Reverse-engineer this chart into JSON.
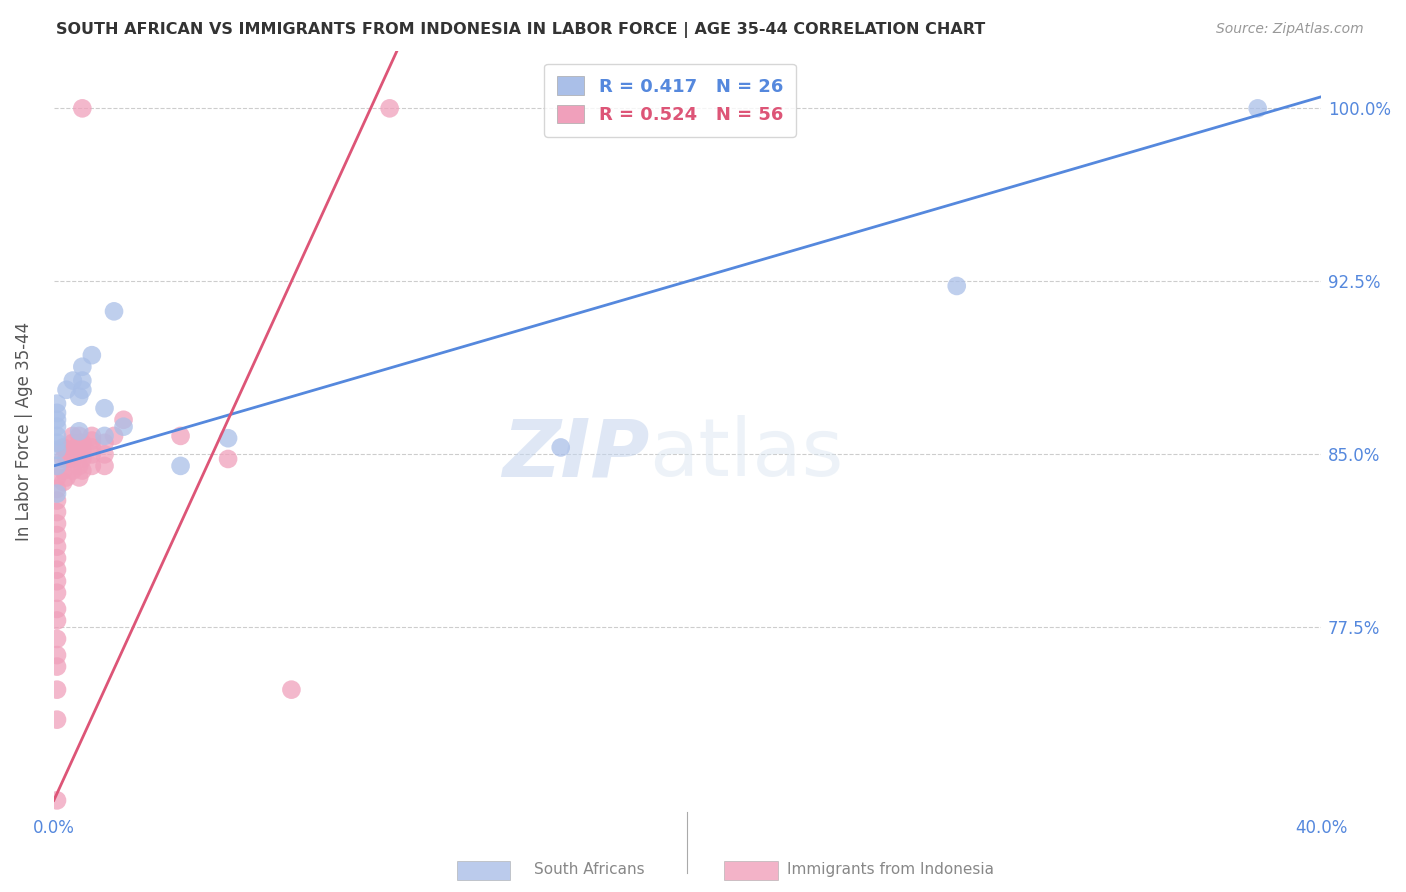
{
  "title": "SOUTH AFRICAN VS IMMIGRANTS FROM INDONESIA IN LABOR FORCE | AGE 35-44 CORRELATION CHART",
  "source": "Source: ZipAtlas.com",
  "ylabel": "In Labor Force | Age 35-44",
  "xlim": [
    0.0,
    0.4
  ],
  "ylim": [
    0.695,
    1.025
  ],
  "yticks": [
    0.775,
    0.85,
    0.925,
    1.0
  ],
  "yticklabels": [
    "77.5%",
    "85.0%",
    "92.5%",
    "100.0%"
  ],
  "grid_color": "#c8c8c8",
  "background_color": "#ffffff",
  "blue_color": "#aabfe8",
  "pink_color": "#f0a0bb",
  "blue_line_color": "#5588dd",
  "pink_line_color": "#dd5577",
  "legend_R_blue": "R = 0.417",
  "legend_N_blue": "N = 26",
  "legend_R_pink": "R = 0.524",
  "legend_N_pink": "N = 56",
  "watermark_zip": "ZIP",
  "watermark_atlas": "atlas",
  "south_africans_x": [
    0.001,
    0.001,
    0.001,
    0.001,
    0.001,
    0.001,
    0.001,
    0.001,
    0.001,
    0.004,
    0.006,
    0.008,
    0.008,
    0.009,
    0.009,
    0.009,
    0.012,
    0.016,
    0.016,
    0.019,
    0.022,
    0.04,
    0.055,
    0.16,
    0.285,
    0.38
  ],
  "south_africans_y": [
    0.833,
    0.845,
    0.852,
    0.855,
    0.858,
    0.862,
    0.865,
    0.868,
    0.872,
    0.878,
    0.882,
    0.86,
    0.875,
    0.878,
    0.882,
    0.888,
    0.893,
    0.858,
    0.87,
    0.912,
    0.862,
    0.845,
    0.857,
    0.853,
    0.923,
    1.0
  ],
  "indonesia_x": [
    0.001,
    0.001,
    0.001,
    0.001,
    0.001,
    0.001,
    0.001,
    0.001,
    0.001,
    0.001,
    0.001,
    0.001,
    0.001,
    0.001,
    0.001,
    0.001,
    0.001,
    0.001,
    0.001,
    0.003,
    0.003,
    0.003,
    0.003,
    0.004,
    0.004,
    0.004,
    0.006,
    0.006,
    0.006,
    0.006,
    0.006,
    0.008,
    0.008,
    0.008,
    0.008,
    0.008,
    0.008,
    0.009,
    0.009,
    0.009,
    0.009,
    0.012,
    0.012,
    0.012,
    0.012,
    0.012,
    0.016,
    0.016,
    0.016,
    0.019,
    0.022,
    0.04,
    0.055,
    0.075,
    0.106,
    0.009
  ],
  "indonesia_y": [
    0.7,
    0.735,
    0.748,
    0.758,
    0.763,
    0.77,
    0.778,
    0.783,
    0.79,
    0.795,
    0.8,
    0.805,
    0.81,
    0.815,
    0.82,
    0.825,
    0.83,
    0.835,
    0.84,
    0.838,
    0.843,
    0.848,
    0.853,
    0.84,
    0.848,
    0.852,
    0.843,
    0.848,
    0.852,
    0.855,
    0.858,
    0.84,
    0.845,
    0.85,
    0.853,
    0.855,
    0.858,
    0.843,
    0.848,
    0.852,
    0.855,
    0.845,
    0.85,
    0.853,
    0.856,
    0.858,
    0.845,
    0.85,
    0.855,
    0.858,
    0.865,
    0.858,
    0.848,
    0.748,
    1.0,
    1.0
  ]
}
